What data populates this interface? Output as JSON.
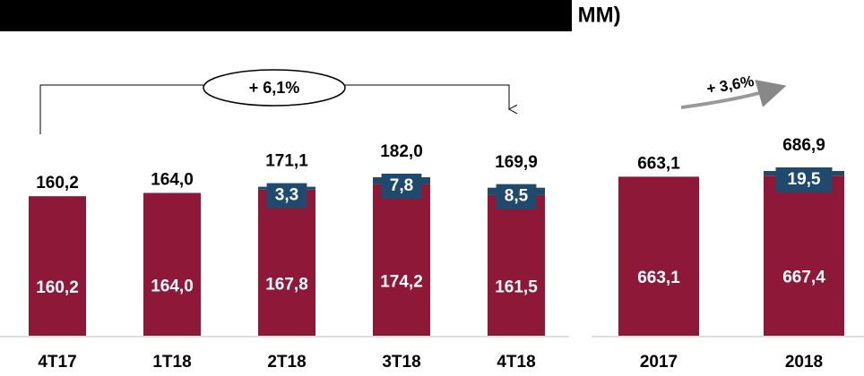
{
  "chart_data": [
    {
      "type": "bar",
      "title": "S MM)",
      "annotation": "+ 6,1%",
      "categories": [
        "4T17",
        "1T18",
        "2T18",
        "3T18",
        "4T18"
      ],
      "series": [
        {
          "color": "#8e1838",
          "values": [
            160.2,
            164.0,
            167.8,
            174.2,
            161.5
          ],
          "value_labels": [
            "160,2",
            "164,0",
            "167,8",
            "174,2",
            "161,5"
          ]
        },
        {
          "color": "#1f4a6e",
          "values": [
            null,
            null,
            3.3,
            7.8,
            8.5
          ],
          "value_labels": [
            null,
            null,
            "3,3",
            "7,8",
            "8,5"
          ]
        }
      ],
      "totals": {
        "values": [
          160.2,
          164.0,
          171.1,
          182.0,
          169.9
        ],
        "value_labels": [
          "160,2",
          "164,0",
          "171,1",
          "182,0",
          "169,9"
        ]
      }
    },
    {
      "type": "bar",
      "annotation": "+ 3,6%",
      "categories": [
        "2017",
        "2018"
      ],
      "series": [
        {
          "color": "#8e1838",
          "values": [
            663.1,
            667.4
          ],
          "value_labels": [
            "663,1",
            "667,4"
          ]
        },
        {
          "color": "#1f4a6e",
          "values": [
            null,
            19.5
          ],
          "value_labels": [
            null,
            "19,5"
          ]
        }
      ],
      "totals": {
        "values": [
          663.1,
          686.9
        ],
        "value_labels": [
          "663,1",
          "686,9"
        ]
      }
    }
  ]
}
